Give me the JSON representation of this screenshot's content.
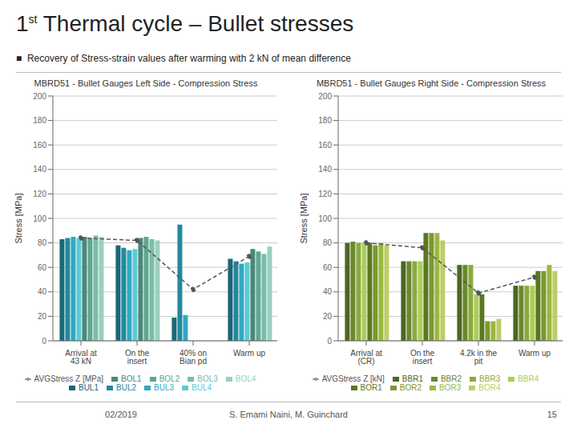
{
  "title": "1st Thermal cycle – Bullet stresses",
  "subtitle": "■  Recovery of Stress-strain values after warming with 2 kN of mean difference",
  "annotations": [
    "02/2019",
    "S. Emami Naini, M. Guinchard",
    "15"
  ],
  "chart_data": [
    {
      "type": "bar",
      "title": "MBRD51 - Bullet Gauges Left Side - Compression Stress",
      "y_label": "Stress [MPa]",
      "categories": [
        "Arrival at 43 kN",
        "On the insert",
        "40% on Bian pd",
        "Warm up"
      ],
      "series": [
        {
          "name": "BUL1",
          "color": "#1A6878",
          "values": [
            83,
            78,
            19,
            67
          ]
        },
        {
          "name": "BUL2",
          "color": "#2388A0",
          "values": [
            84,
            76,
            95,
            65
          ]
        },
        {
          "name": "BUL3",
          "color": "#31A8C0",
          "values": [
            85,
            74,
            21,
            63
          ]
        },
        {
          "name": "BUL4",
          "color": "#5CCAD6",
          "values": [
            84,
            75,
            0,
            64
          ]
        },
        {
          "name": "BOL1",
          "color": "#4A8878",
          "values": [
            85,
            84,
            0,
            75
          ]
        },
        {
          "name": "BOL2",
          "color": "#5EA890",
          "values": [
            84,
            85,
            0,
            73
          ]
        },
        {
          "name": "BOL3",
          "color": "#7ABCAA",
          "values": [
            86,
            83,
            0,
            71
          ]
        },
        {
          "name": "BOL4",
          "color": "#9AD0C0",
          "values": [
            85,
            82,
            0,
            77
          ]
        },
        {
          "name": "AVGStress Z [MPa]",
          "type": "line",
          "color": "#555555",
          "line_style": "dashed",
          "marker": "circle",
          "values": [
            84,
            82,
            42,
            69
          ]
        }
      ],
      "ylim": [
        0,
        200
      ],
      "yticks": [
        0,
        20,
        40,
        60,
        80,
        100,
        120,
        140,
        160,
        180,
        200
      ],
      "grid": true,
      "legend": "bottom"
    },
    {
      "type": "bar",
      "title": "MBRD51 - Bullet Gauges Right Side - Compression Stress",
      "y_label": "Stress [MPa]",
      "categories": [
        "Arrival at (CR)",
        "On the insert",
        "4.2k in the pit",
        "Warm up"
      ],
      "series": [
        {
          "name": "BBR1",
          "color": "#4A6820",
          "values": [
            80,
            65,
            62,
            45
          ]
        },
        {
          "name": "BBR2",
          "color": "#6A8830",
          "values": [
            81,
            65,
            62,
            45
          ]
        },
        {
          "name": "BBR3",
          "color": "#8AAA40",
          "values": [
            80,
            65,
            62,
            45
          ]
        },
        {
          "name": "BBR4",
          "color": "#AACE58",
          "values": [
            80,
            65,
            38,
            45
          ]
        },
        {
          "name": "BOR1",
          "color": "#5A7820",
          "values": [
            80,
            88,
            38,
            57
          ]
        },
        {
          "name": "BOR2",
          "color": "#7A9830",
          "values": [
            78,
            88,
            16,
            57
          ]
        },
        {
          "name": "BOR3",
          "color": "#9AB840",
          "values": [
            80,
            88,
            16,
            62
          ]
        },
        {
          "name": "BOR4",
          "color": "#BACE68",
          "values": [
            78,
            82,
            18,
            57
          ]
        },
        {
          "name": "AVGStress Z [kN]",
          "type": "line",
          "color": "#555555",
          "line_style": "dashed",
          "marker": "circle",
          "values": [
            80,
            76,
            39,
            52
          ]
        }
      ],
      "ylim": [
        0,
        200
      ],
      "yticks": [
        0,
        20,
        40,
        60,
        80,
        100,
        120,
        140,
        160,
        180,
        200
      ],
      "grid": true,
      "legend": "bottom"
    }
  ]
}
